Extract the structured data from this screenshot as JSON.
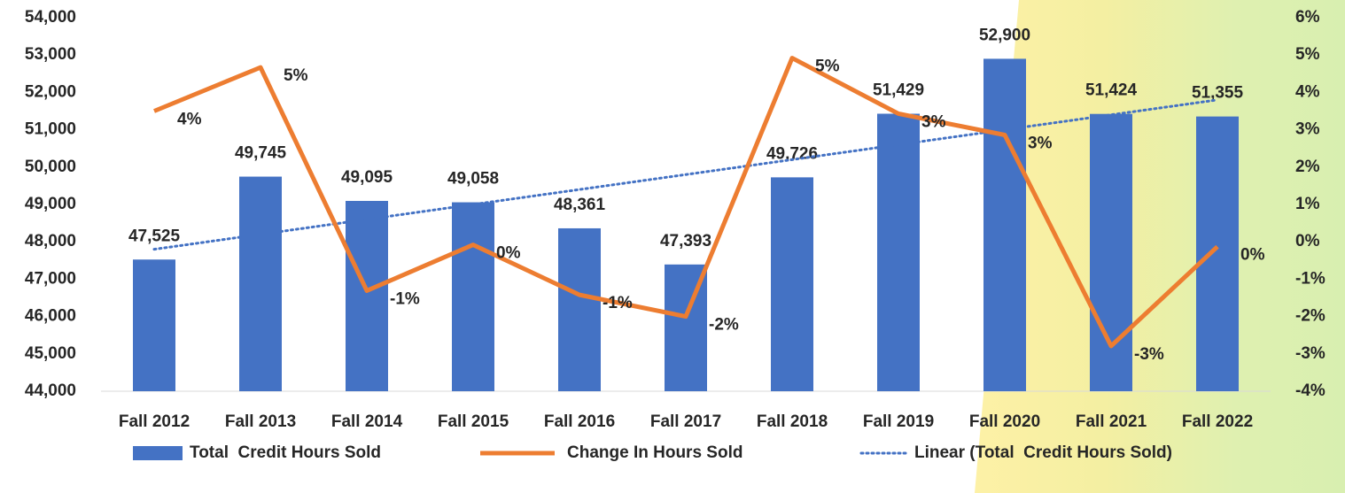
{
  "chart_data": {
    "type": "bar_line",
    "categories": [
      "Fall 2012",
      "Fall 2013",
      "Fall 2014",
      "Fall 2015",
      "Fall 2016",
      "Fall 2017",
      "Fall 2018",
      "Fall 2019",
      "Fall 2020",
      "Fall 2021",
      "Fall 2022"
    ],
    "series": [
      {
        "name": "Total  Credit Hours Sold",
        "type": "bar",
        "color": "#4472c4",
        "values": [
          47525,
          49745,
          49095,
          49058,
          48361,
          47393,
          49726,
          51429,
          52900,
          51424,
          51355
        ],
        "value_labels": [
          "47,525",
          "49,745",
          "49,095",
          "49,058",
          "48,361",
          "47,393",
          "49,726",
          "51,429",
          "52,900",
          "51,424",
          "51,355"
        ]
      },
      {
        "name": "Change In Hours Sold",
        "type": "line",
        "axis": "y2",
        "color": "#ed7d31",
        "values": [
          3.5,
          4.67,
          -1.31,
          -0.08,
          -1.42,
          -2.0,
          4.92,
          3.43,
          2.86,
          -2.79,
          -0.13
        ],
        "value_labels": [
          "4%",
          "5%",
          "-1%",
          "0%",
          "-1%",
          "-2%",
          "5%",
          "3%",
          "3%",
          "-3%",
          "0%"
        ]
      }
    ],
    "trendline": {
      "name": "Linear (Total  Credit Hours Sold)",
      "color": "#4472c4",
      "values": [
        47800,
        51800
      ]
    },
    "ylim": [
      44000,
      54000
    ],
    "yticks": [
      {
        "value": 44000,
        "label": "44,000"
      },
      {
        "value": 45000,
        "label": "45,000"
      },
      {
        "value": 46000,
        "label": "46,000"
      },
      {
        "value": 47000,
        "label": "47,000"
      },
      {
        "value": 48000,
        "label": "48,000"
      },
      {
        "value": 49000,
        "label": "49,000"
      },
      {
        "value": 50000,
        "label": "50,000"
      },
      {
        "value": 51000,
        "label": "51,000"
      },
      {
        "value": 52000,
        "label": "52,000"
      },
      {
        "value": 53000,
        "label": "53,000"
      },
      {
        "value": 54000,
        "label": "54,000"
      }
    ],
    "y2lim": [
      -4,
      6
    ],
    "y2ticks": [
      {
        "value": -4,
        "label": "-4%"
      },
      {
        "value": -3,
        "label": "-3%"
      },
      {
        "value": -2,
        "label": "-2%"
      },
      {
        "value": -1,
        "label": "-1%"
      },
      {
        "value": 0,
        "label": "0%"
      },
      {
        "value": 1,
        "label": "1%"
      },
      {
        "value": 2,
        "label": "2%"
      },
      {
        "value": 3,
        "label": "3%"
      },
      {
        "value": 4,
        "label": "4%"
      },
      {
        "value": 5,
        "label": "5%"
      },
      {
        "value": 6,
        "label": "6%"
      }
    ],
    "legend": "bottom"
  }
}
